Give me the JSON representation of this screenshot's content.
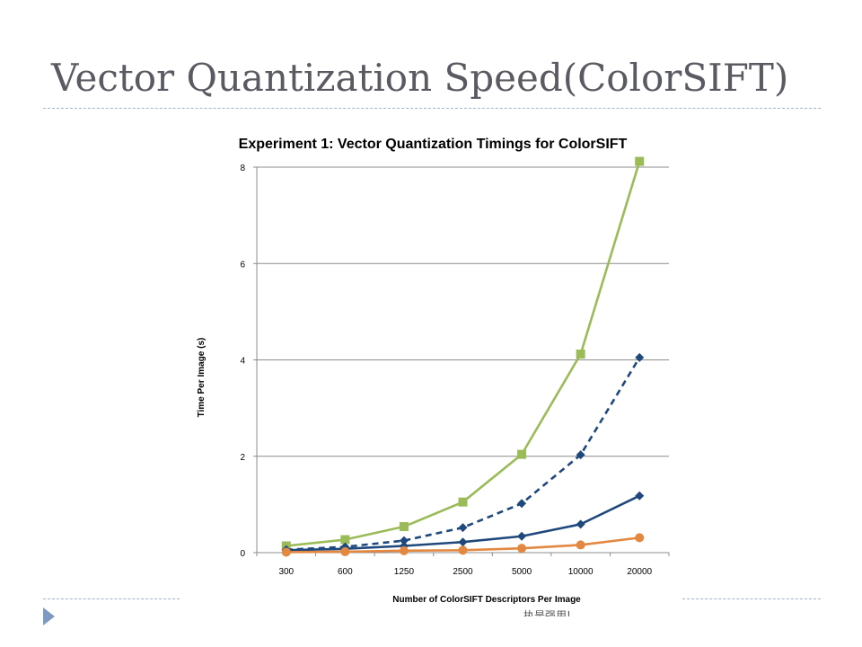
{
  "slide": {
    "title": "Vector Quantization Speed(ColorSIFT)",
    "footer_text": "执是强用!",
    "accent_color": "#7d9ac2",
    "bullet_icon": "triangle-bullet-icon"
  },
  "chart_data": {
    "type": "line",
    "title": "Experiment 1: Vector Quantization Timings for ColorSIFT",
    "xlabel": "Number of  ColorSIFT Descriptors Per Image",
    "ylabel": "Time Per Image (s)",
    "categories": [
      "300",
      "600",
      "1250",
      "2500",
      "5000",
      "10000",
      "20000"
    ],
    "ylim": [
      0,
      8
    ],
    "yticks": [
      0,
      2,
      4,
      6,
      8
    ],
    "grid": "horizontal",
    "legend": "none",
    "series": [
      {
        "values": [
          0.14,
          0.27,
          0.54,
          1.05,
          2.04,
          4.12,
          8.12
        ],
        "color": "#9bbb59",
        "style": "solid",
        "marker": "square"
      },
      {
        "values": [
          0.06,
          0.12,
          0.25,
          0.52,
          1.02,
          2.03,
          4.05
        ],
        "color": "#1f497d",
        "style": "dashed",
        "marker": "diamond"
      },
      {
        "values": [
          0.05,
          0.08,
          0.14,
          0.22,
          0.34,
          0.59,
          1.18
        ],
        "color": "#1f497d",
        "style": "solid",
        "marker": "diamond"
      },
      {
        "values": [
          0.01,
          0.02,
          0.04,
          0.05,
          0.09,
          0.16,
          0.31
        ],
        "color": "#e38840",
        "style": "solid",
        "marker": "circle"
      }
    ]
  }
}
